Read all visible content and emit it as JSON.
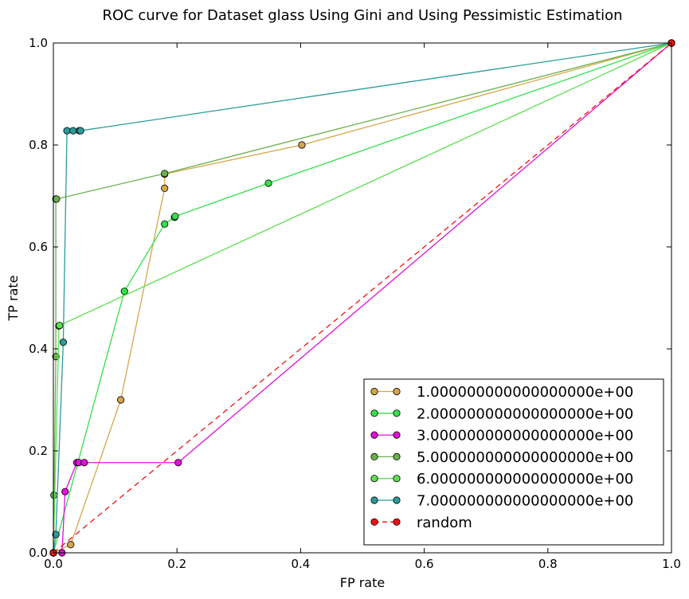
{
  "chart_data": {
    "type": "line",
    "title": "ROC curve for Dataset glass Using Gini and Using Pessimistic Estimation",
    "xlabel": "FP rate",
    "ylabel": "TP rate",
    "xlim": [
      0,
      1
    ],
    "ylim": [
      0,
      1
    ],
    "x_ticks": [
      "0.0",
      "0.2",
      "0.4",
      "0.6",
      "0.8",
      "1.0"
    ],
    "y_ticks": [
      "0.0",
      "0.2",
      "0.4",
      "0.6",
      "0.8",
      "1.0"
    ],
    "grid": false,
    "legend_position": "bottom-right",
    "series": [
      {
        "name": "1.000000000000000000e+00",
        "color": "#d4a64a",
        "style": "solid",
        "points": [
          [
            0,
            0
          ],
          [
            0.028,
            0.016
          ],
          [
            0.109,
            0.3
          ],
          [
            0.18,
            0.715
          ],
          [
            0.18,
            0.743
          ],
          [
            0.402,
            0.8
          ],
          [
            1,
            1
          ]
        ]
      },
      {
        "name": "2.000000000000000000e+00",
        "color": "#33e04a",
        "style": "solid",
        "points": [
          [
            0,
            0
          ],
          [
            0.115,
            0.513
          ],
          [
            0.18,
            0.645
          ],
          [
            0.196,
            0.658
          ],
          [
            0.197,
            0.66
          ],
          [
            0.348,
            0.725
          ],
          [
            1,
            1
          ]
        ]
      },
      {
        "name": "3.000000000000000000e+00",
        "color": "#e010d8",
        "style": "solid",
        "points": [
          [
            0,
            0
          ],
          [
            0.014,
            0
          ],
          [
            0.019,
            0.12
          ],
          [
            0.038,
            0.177
          ],
          [
            0.041,
            0.177
          ],
          [
            0.05,
            0.177
          ],
          [
            0.202,
            0.177
          ],
          [
            1,
            1
          ]
        ]
      },
      {
        "name": "5.000000000000000000e+00",
        "color": "#6ab04c",
        "style": "solid",
        "points": [
          [
            0,
            0
          ],
          [
            0.001,
            0.113
          ],
          [
            0.004,
            0.385
          ],
          [
            0.004,
            0.694
          ],
          [
            0.005,
            0.694
          ],
          [
            0.18,
            0.744
          ],
          [
            1,
            1
          ]
        ]
      },
      {
        "name": "6.000000000000000000e+00",
        "color": "#5ee050",
        "style": "solid",
        "points": [
          [
            0,
            0
          ],
          [
            0.009,
            0.445
          ],
          [
            0.01,
            0.446
          ],
          [
            1,
            1
          ]
        ]
      },
      {
        "name": "7.000000000000000000e+00",
        "color": "#2a9c98",
        "style": "solid",
        "points": [
          [
            0,
            0
          ],
          [
            0.004,
            0.036
          ],
          [
            0.016,
            0.413
          ],
          [
            0.022,
            0.828
          ],
          [
            0.032,
            0.828
          ],
          [
            0.042,
            0.828
          ],
          [
            0.044,
            0.828
          ],
          [
            1,
            1
          ]
        ]
      },
      {
        "name": "random",
        "color": "#ee1111",
        "style": "dashed",
        "points": [
          [
            0,
            0
          ],
          [
            1,
            1
          ]
        ]
      }
    ]
  }
}
